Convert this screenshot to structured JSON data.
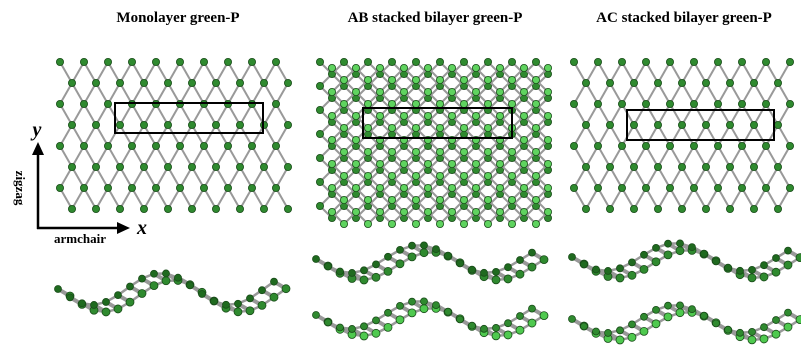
{
  "titles": [
    "Monolayer green-P",
    "AB stacked bilayer green-P",
    "AC stacked bilayer green-P"
  ],
  "axes": {
    "y": "y",
    "x": "x",
    "vertical": "zigzag",
    "horizontal": "armchair"
  }
}
